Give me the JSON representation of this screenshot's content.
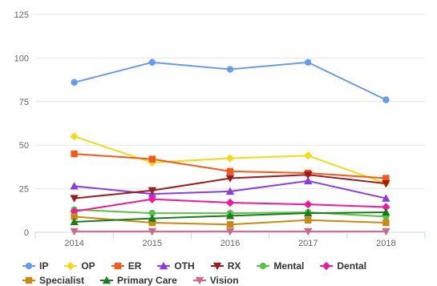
{
  "chart_data": {
    "type": "line",
    "title": "",
    "xlabel": "",
    "ylabel": "",
    "x": [
      "2014",
      "2015",
      "2016",
      "2017",
      "2018"
    ],
    "ylim": [
      0,
      125
    ],
    "yticks": [
      "0",
      "25",
      "50",
      "75",
      "100",
      "125"
    ],
    "grid": "horizontal",
    "legend_position": "bottom",
    "series": [
      {
        "name": "IP",
        "color": "#6b9be8",
        "marker": "circle",
        "values": [
          86,
          97.5,
          93.5,
          97.5,
          76
        ]
      },
      {
        "name": "OP",
        "color": "#f2d91c",
        "marker": "diamond",
        "values": [
          55,
          40,
          42.5,
          44,
          28
        ]
      },
      {
        "name": "ER",
        "color": "#f05a1a",
        "marker": "square",
        "values": [
          45,
          42,
          35,
          34,
          31
        ]
      },
      {
        "name": "OTH",
        "color": "#8a3ce0",
        "marker": "triangle",
        "values": [
          26.5,
          22,
          23.5,
          29.5,
          19.5
        ]
      },
      {
        "name": "RX",
        "color": "#9b1c1c",
        "marker": "triangle-down",
        "values": [
          19.5,
          24,
          31,
          33,
          28
        ]
      },
      {
        "name": "Mental",
        "color": "#5ac24a",
        "marker": "circle",
        "values": [
          13,
          11,
          11,
          11.5,
          9
        ]
      },
      {
        "name": "Dental",
        "color": "#ec1a9c",
        "marker": "diamond",
        "values": [
          12,
          19,
          17,
          16,
          14.5
        ]
      },
      {
        "name": "Specialist",
        "color": "#c78a12",
        "marker": "square",
        "values": [
          9,
          5.5,
          4.5,
          7,
          5.5
        ]
      },
      {
        "name": "Primary Care",
        "color": "#1e7a1e",
        "marker": "triangle",
        "values": [
          6,
          8,
          9.5,
          11,
          11.5
        ]
      },
      {
        "name": "Vision",
        "color": "#c96b8a",
        "marker": "triangle-down",
        "values": [
          0.5,
          0.5,
          0.5,
          0.5,
          0.5
        ]
      }
    ]
  }
}
